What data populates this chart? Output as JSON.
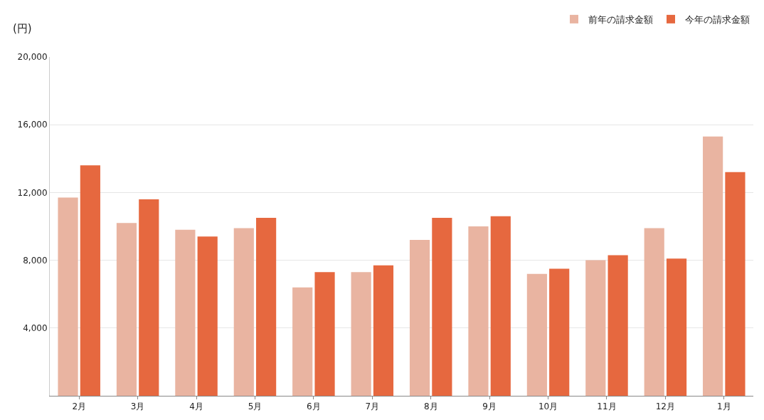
{
  "chart_data": {
    "type": "bar",
    "ylabel": "(円)",
    "categories": [
      "2月",
      "3月",
      "4月",
      "5月",
      "6月",
      "7月",
      "8月",
      "9月",
      "10月",
      "11月",
      "12月",
      "1月"
    ],
    "series": [
      {
        "name": "前年の請求金額",
        "color": "#e9b4a1",
        "values": [
          11700,
          10200,
          9800,
          9900,
          6400,
          7300,
          9200,
          10000,
          7200,
          8000,
          9900,
          15300
        ]
      },
      {
        "name": "今年の請求金額",
        "color": "#e6683f",
        "values": [
          13600,
          11600,
          9400,
          10500,
          7300,
          7700,
          10500,
          10600,
          7500,
          8300,
          8100,
          13200
        ]
      }
    ],
    "ylim": [
      0,
      20000
    ],
    "yticks": [
      {
        "value": 4000,
        "label": "4,000"
      },
      {
        "value": 8000,
        "label": "8,000"
      },
      {
        "value": 12000,
        "label": "12,000"
      },
      {
        "value": 16000,
        "label": "16,000"
      },
      {
        "value": 20000,
        "label": "20,000"
      }
    ],
    "grid": "y",
    "legend": "top right"
  }
}
